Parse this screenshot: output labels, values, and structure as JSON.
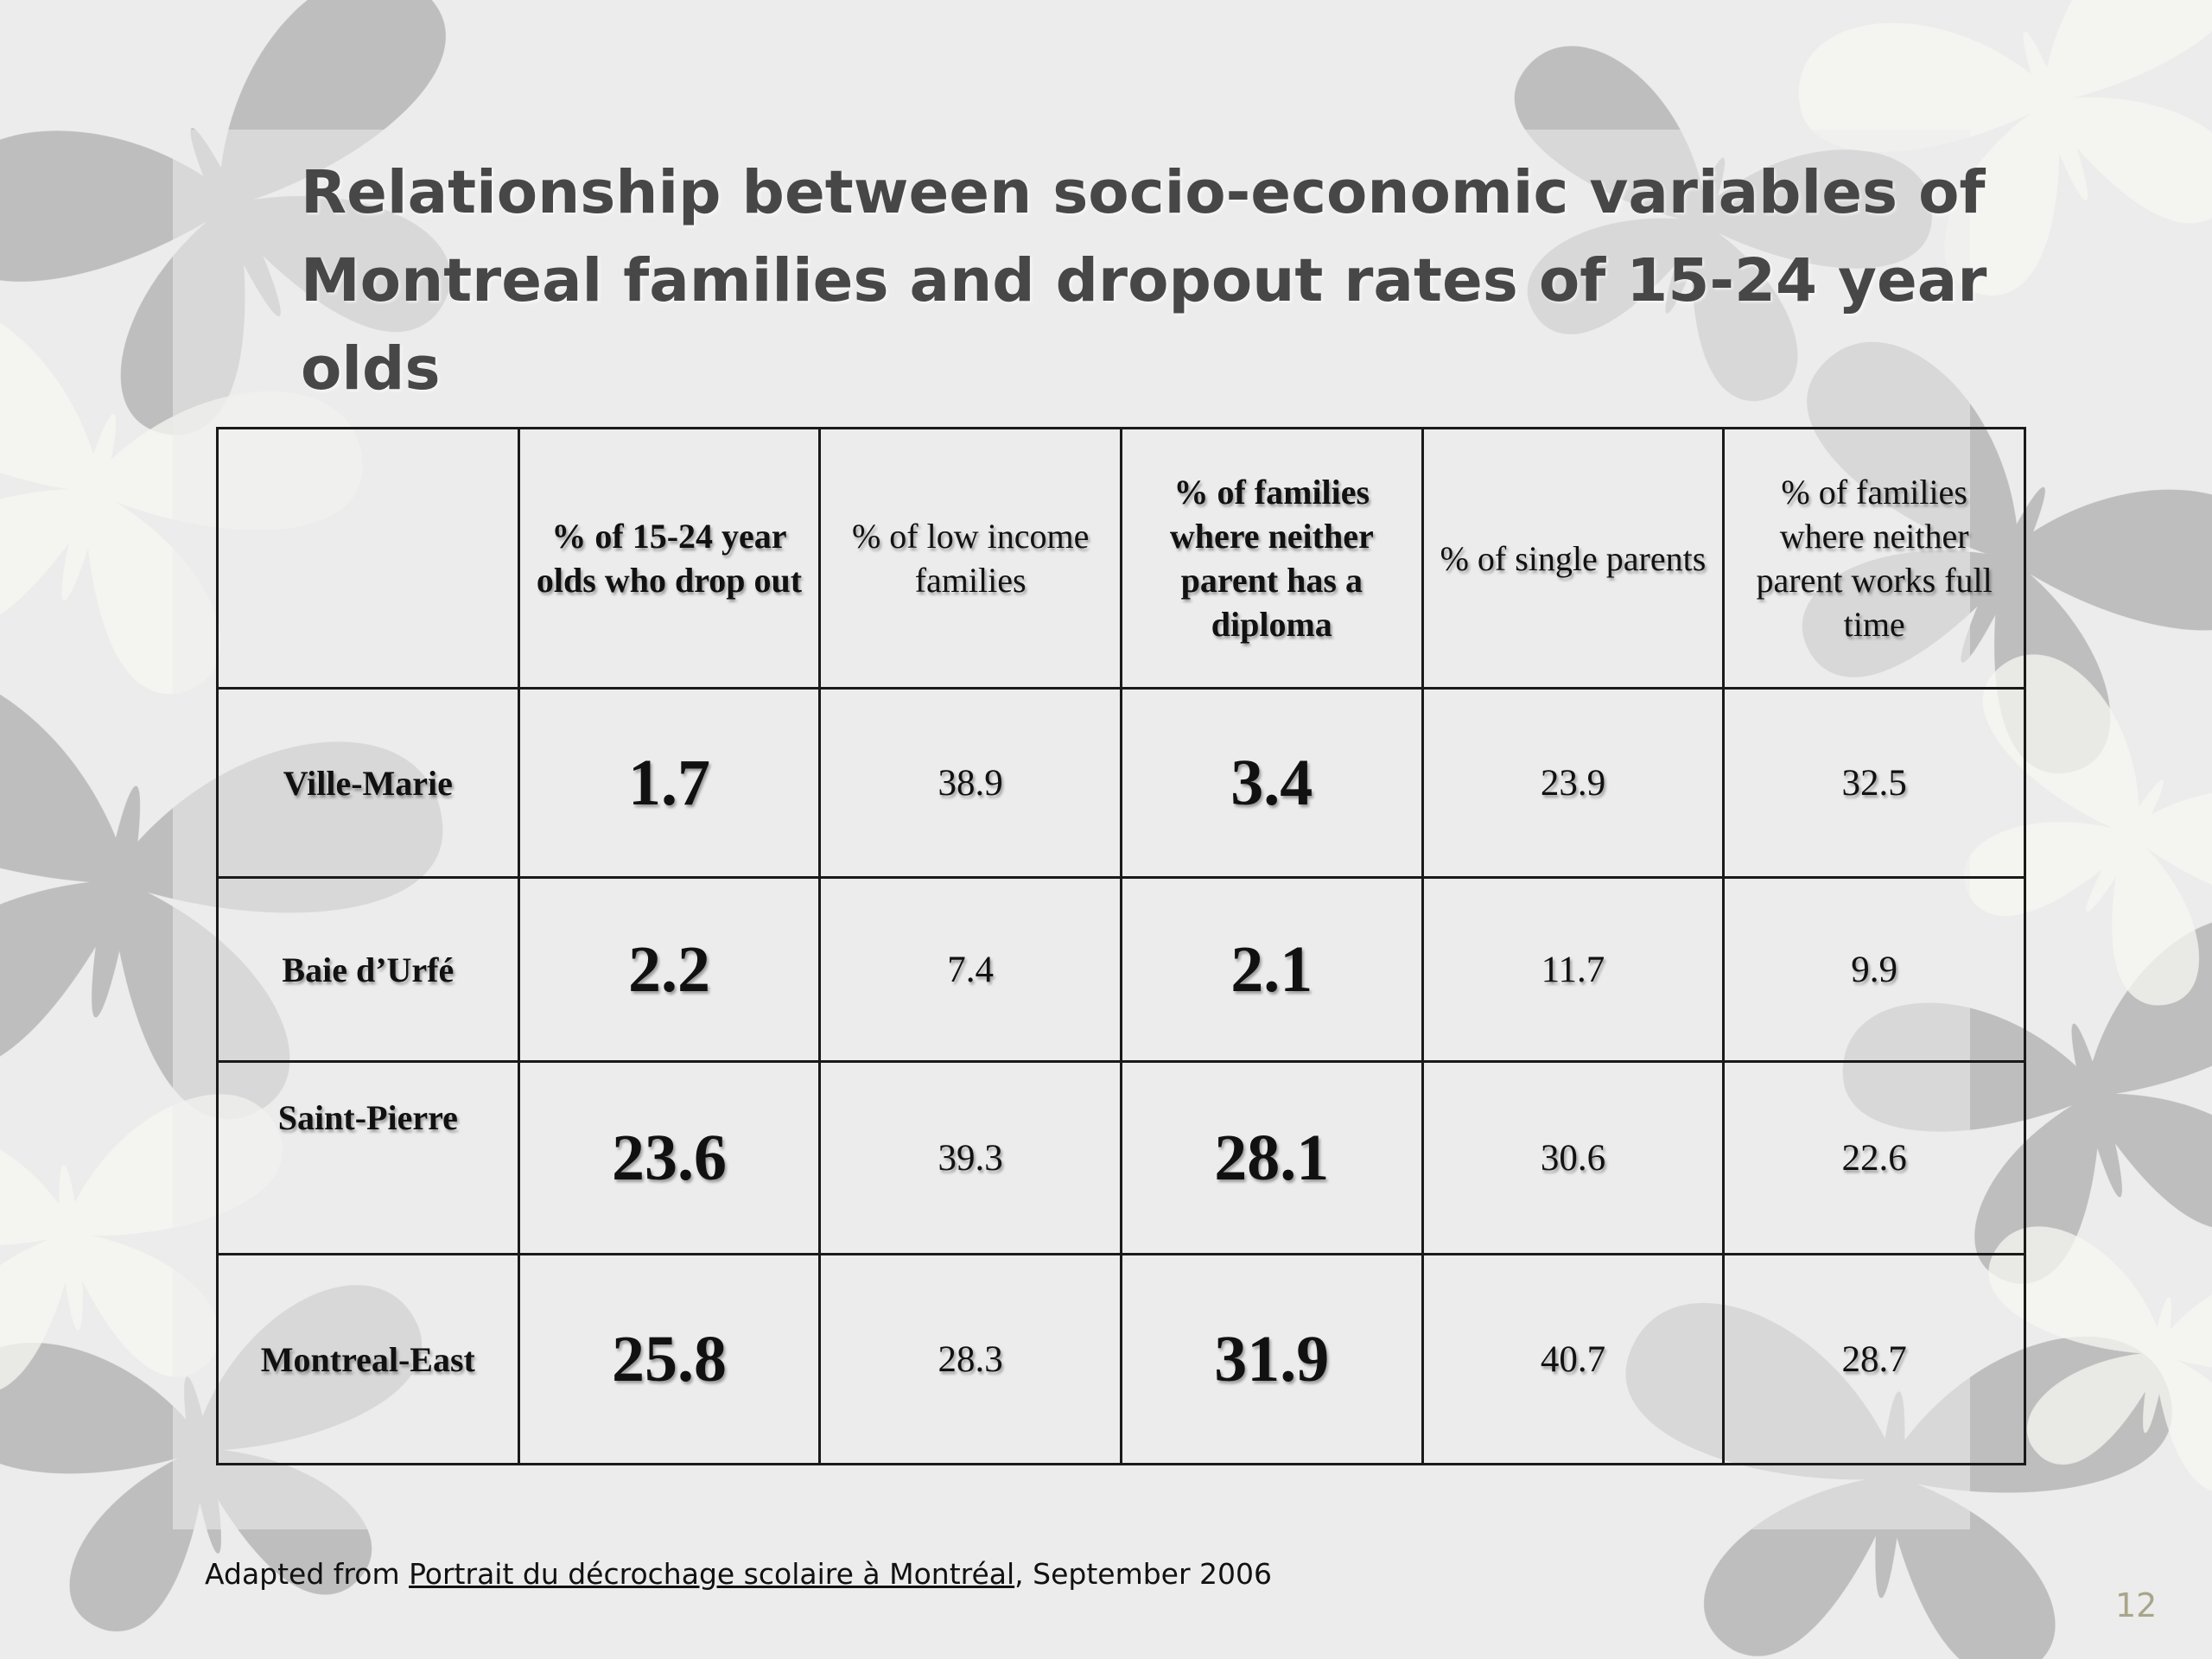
{
  "slide": {
    "title_line1": "Relationship  between socio-economic variables of",
    "title_line2": "Montreal families and dropout rates of 15-24 year olds",
    "page_number": "12"
  },
  "table": {
    "headers": [
      "",
      "% of 15-24 year olds who drop out",
      "% of  low income families",
      "% of  families where neither parent has a diploma",
      "% of  single parents",
      "% of  families where neither parent works full time"
    ],
    "rows": [
      {
        "label": "Ville-Marie",
        "dropout": "1.7",
        "low_income": "38.9",
        "no_diploma": "3.4",
        "single_parents": "23.9",
        "no_full_time": "32.5"
      },
      {
        "label": "Baie d’Urfé",
        "dropout": "2.2",
        "low_income": "7.4",
        "no_diploma": "2.1",
        "single_parents": "11.7",
        "no_full_time": "9.9"
      },
      {
        "label": "Saint-Pierre",
        "dropout": "23.6",
        "low_income": "39.3",
        "no_diploma": "28.1",
        "single_parents": "30.6",
        "no_full_time": "22.6"
      },
      {
        "label": "Montreal-East",
        "dropout": "25.8",
        "low_income": "28.3",
        "no_diploma": "31.9",
        "single_parents": "40.7",
        "no_full_time": "28.7"
      }
    ]
  },
  "source": {
    "prefix": "Adapted from ",
    "link_text": "Portrait du décrochage scolaire à Montréal",
    "suffix": ", September 2006"
  }
}
